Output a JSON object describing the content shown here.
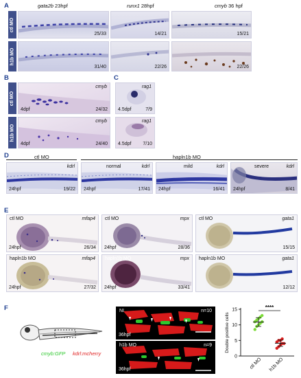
{
  "panelA": {
    "label": "A",
    "headers": [
      {
        "gene": "gata2b",
        "stage": "23hpf"
      },
      {
        "gene": "runx1",
        "stage": "28hpf"
      },
      {
        "gene": "cmyb",
        "stage": "36 hpf"
      }
    ],
    "rows": [
      {
        "label": "ctl MO",
        "counts": [
          "25/33",
          "14/21",
          "15/21"
        ]
      },
      {
        "label": "h1b MO",
        "counts": [
          "31/40",
          "22/26",
          "22/26"
        ]
      }
    ]
  },
  "panelB": {
    "label": "B",
    "rows": [
      {
        "label": "ctl MO",
        "gene": "cmyb",
        "stage": "4dpf",
        "count": "24/32"
      },
      {
        "label": "h1b MO",
        "gene": "cmyb",
        "stage": "4dpf",
        "count": "24/40"
      }
    ]
  },
  "panelC": {
    "label": "C",
    "rows": [
      {
        "gene": "rag1",
        "stage": "4.5dpf",
        "count": "7/9"
      },
      {
        "gene": "rag1",
        "stage": "4.5dpf",
        "count": "7/10"
      }
    ]
  },
  "panelD": {
    "label": "D",
    "groups": [
      "ctl MO",
      "hapln1b MO"
    ],
    "images": [
      {
        "sub": "",
        "gene": "kdrl",
        "stage": "24hpf",
        "count": "19/22"
      },
      {
        "sub": "normal",
        "gene": "kdrl",
        "stage": "24hpf",
        "count": "17/41"
      },
      {
        "sub": "mild",
        "gene": "kdrl",
        "stage": "24hpf",
        "count": "16/41"
      },
      {
        "sub": "severe",
        "gene": "kdrl",
        "stage": "24hpf",
        "count": "8/41"
      }
    ]
  },
  "panelE": {
    "label": "E",
    "images": [
      {
        "group": "ctl MO",
        "gene": "mfap4",
        "stage": "24hpf",
        "count": "26/34"
      },
      {
        "group": "ctl MO",
        "gene": "mpx",
        "stage": "24hpf",
        "count": "28/36"
      },
      {
        "group": "ctl MO",
        "gene": "gata1",
        "stage": "",
        "count": "15/15"
      },
      {
        "group": "hapln1b MO",
        "gene": "mfap4",
        "stage": "24hpf",
        "count": "27/32"
      },
      {
        "group": "hapln1b MO",
        "gene": "mpx",
        "stage": "24hpf",
        "count": "33/41"
      },
      {
        "group": "hapln1b MO",
        "gene": "gata1",
        "stage": "",
        "count": "12/12"
      }
    ]
  },
  "panelF": {
    "label": "F",
    "legend_green": "cmyb:GFP",
    "legend_red": "kdrl:mcherry",
    "fluor": [
      {
        "label": "NI",
        "stage": "36hpf",
        "n": "n=10"
      },
      {
        "label": "h1b MO",
        "stage": "36hpf",
        "n": "n=9"
      }
    ],
    "significance": "****",
    "colors": {
      "green": "#2ec82e",
      "red": "#e02020",
      "ctl_points": "#7ddc3a",
      "mo_points": "#d81e1e"
    }
  },
  "chart_data": {
    "type": "scatter",
    "ylabel": "Double positive cells",
    "categories": [
      "ctl MO",
      "h1b MO"
    ],
    "yticks": [
      0,
      5,
      10,
      15
    ],
    "ylim": [
      0,
      15
    ],
    "series": [
      {
        "name": "ctl MO",
        "values": [
          8.5,
          9.5,
          10,
          10.5,
          11,
          11,
          11.5,
          12,
          12.5,
          13
        ]
      },
      {
        "name": "h1b MO",
        "values": [
          2.5,
          3,
          3.5,
          4,
          4,
          4.5,
          5,
          5,
          5.5
        ]
      }
    ],
    "means": [
      10.9,
      4.1
    ],
    "sd": [
      1.4,
      1.0
    ],
    "annotation": "****"
  }
}
